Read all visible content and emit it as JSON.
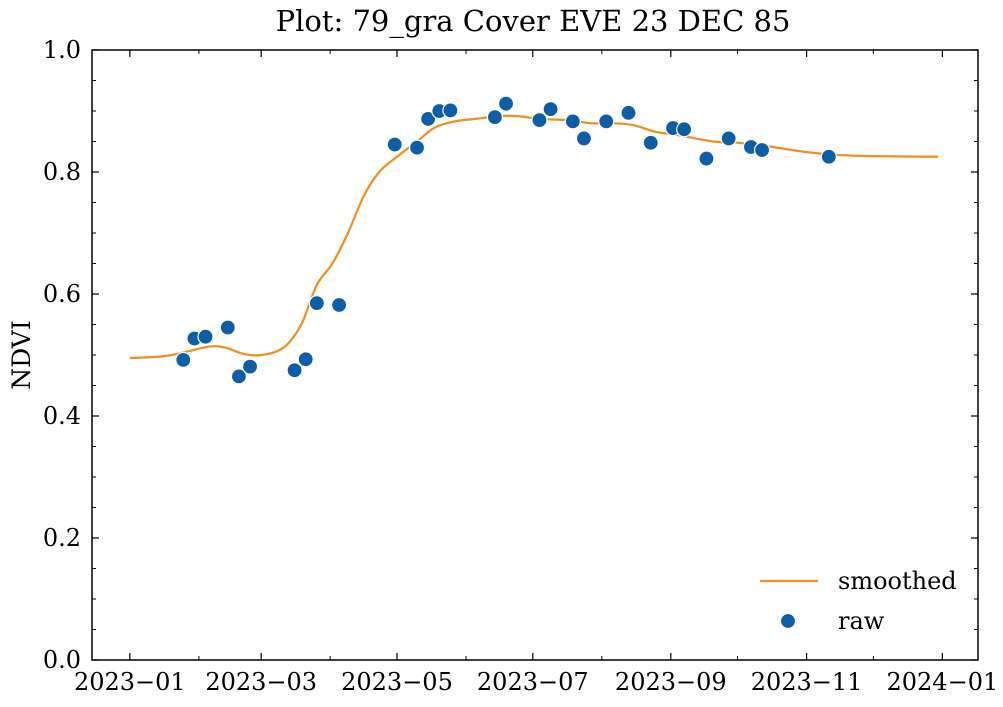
{
  "chart_data": {
    "type": "line",
    "title": "Plot: 79_gra Cover EVE 23 DEC 85",
    "xlabel": "",
    "ylabel": "NDVI",
    "xlim": [
      "2022-12-15",
      "2024-01-17"
    ],
    "ylim": [
      0.0,
      1.0
    ],
    "x_ticks": [
      "2023-01-01",
      "2023-03-01",
      "2023-05-01",
      "2023-07-01",
      "2023-09-01",
      "2023-11-01",
      "2024-01-01"
    ],
    "x_tick_labels": [
      "2023−01",
      "2023−03",
      "2023−05",
      "2023−07",
      "2023−09",
      "2023−11",
      "2024−01"
    ],
    "y_ticks": [
      0.0,
      0.2,
      0.4,
      0.6,
      0.8,
      1.0
    ],
    "y_tick_labels": [
      "0.0",
      "0.2",
      "0.4",
      "0.6",
      "0.8",
      "1.0"
    ],
    "grid": false,
    "legend_position": "bottom-right",
    "series": [
      {
        "name": "smoothed",
        "kind": "line",
        "color": "#f28e1c",
        "points": [
          [
            "2023-01-01",
            0.495
          ],
          [
            "2023-01-16",
            0.498
          ],
          [
            "2023-01-26",
            0.505
          ],
          [
            "2023-02-06",
            0.514
          ],
          [
            "2023-02-13",
            0.512
          ],
          [
            "2023-02-21",
            0.502
          ],
          [
            "2023-03-01",
            0.5
          ],
          [
            "2023-03-11",
            0.512
          ],
          [
            "2023-03-19",
            0.55
          ],
          [
            "2023-03-26",
            0.615
          ],
          [
            "2023-04-02",
            0.65
          ],
          [
            "2023-04-09",
            0.7
          ],
          [
            "2023-04-16",
            0.76
          ],
          [
            "2023-04-23",
            0.8
          ],
          [
            "2023-05-01",
            0.825
          ],
          [
            "2023-05-10",
            0.85
          ],
          [
            "2023-05-18",
            0.873
          ],
          [
            "2023-05-27",
            0.883
          ],
          [
            "2023-06-05",
            0.887
          ],
          [
            "2023-06-18",
            0.892
          ],
          [
            "2023-06-26",
            0.891
          ],
          [
            "2023-07-04",
            0.887
          ],
          [
            "2023-07-17",
            0.885
          ],
          [
            "2023-07-27",
            0.88
          ],
          [
            "2023-08-05",
            0.88
          ],
          [
            "2023-08-15",
            0.877
          ],
          [
            "2023-08-25",
            0.866
          ],
          [
            "2023-09-05",
            0.86
          ],
          [
            "2023-09-20",
            0.85
          ],
          [
            "2023-10-01",
            0.848
          ],
          [
            "2023-10-15",
            0.842
          ],
          [
            "2023-10-31",
            0.833
          ],
          [
            "2023-11-15",
            0.828
          ],
          [
            "2023-12-01",
            0.826
          ],
          [
            "2023-12-30",
            0.825
          ]
        ]
      },
      {
        "name": "raw",
        "kind": "scatter",
        "color": "#0d5ea8",
        "points": [
          [
            "2023-01-25",
            0.492
          ],
          [
            "2023-01-30",
            0.527
          ],
          [
            "2023-02-04",
            0.53
          ],
          [
            "2023-02-14",
            0.545
          ],
          [
            "2023-02-19",
            0.465
          ],
          [
            "2023-02-24",
            0.481
          ],
          [
            "2023-03-16",
            0.475
          ],
          [
            "2023-03-21",
            0.493
          ],
          [
            "2023-03-26",
            0.585
          ],
          [
            "2023-04-05",
            0.582
          ],
          [
            "2023-04-30",
            0.845
          ],
          [
            "2023-05-10",
            0.84
          ],
          [
            "2023-05-15",
            0.887
          ],
          [
            "2023-05-20",
            0.9
          ],
          [
            "2023-05-25",
            0.901
          ],
          [
            "2023-06-14",
            0.89
          ],
          [
            "2023-06-19",
            0.912
          ],
          [
            "2023-07-04",
            0.885
          ],
          [
            "2023-07-09",
            0.903
          ],
          [
            "2023-07-19",
            0.883
          ],
          [
            "2023-07-24",
            0.855
          ],
          [
            "2023-08-03",
            0.883
          ],
          [
            "2023-08-13",
            0.897
          ],
          [
            "2023-08-23",
            0.848
          ],
          [
            "2023-09-02",
            0.872
          ],
          [
            "2023-09-07",
            0.87
          ],
          [
            "2023-09-17",
            0.822
          ],
          [
            "2023-09-27",
            0.855
          ],
          [
            "2023-10-07",
            0.841
          ],
          [
            "2023-10-12",
            0.836
          ],
          [
            "2023-11-11",
            0.825
          ]
        ]
      }
    ]
  }
}
